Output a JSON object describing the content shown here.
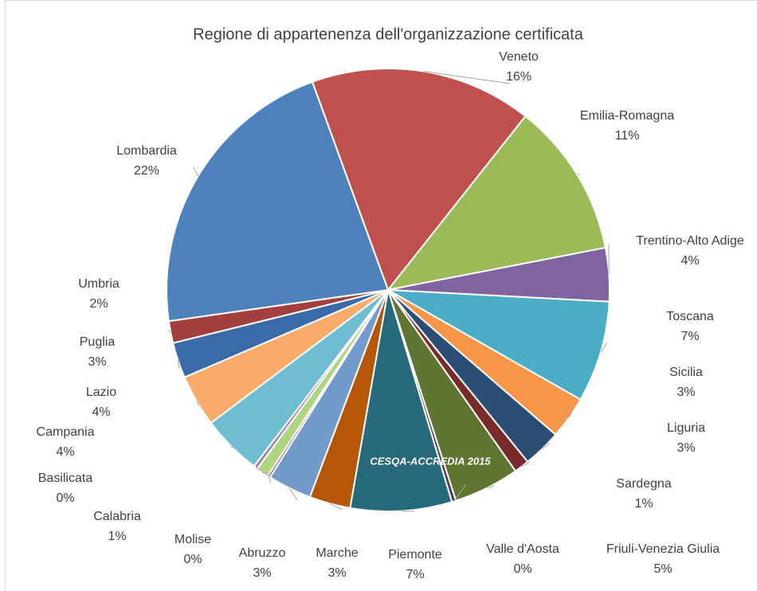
{
  "chart_data": {
    "type": "pie",
    "title": "Regione di appartenenza dell'organizzazione certificata",
    "annotation": "CESQA-ACCREDIA 2015",
    "categories": [
      "Veneto",
      "Emilia-Romagna",
      "Trentino-Alto Adige",
      "Toscana",
      "Sicilia",
      "Liguria",
      "Sardegna",
      "Friuli-Venezia Giulia",
      "Valle d'Aosta",
      "Piemonte",
      "Marche",
      "Abruzzo",
      "Molise",
      "Calabria",
      "Basilicata",
      "Campania",
      "Lazio",
      "Puglia",
      "Umbria",
      "Lombardia"
    ],
    "values": [
      16.2,
      11.3,
      3.9,
      7.4,
      3.1,
      2.8,
      1.1,
      4.8,
      0.3,
      7.4,
      3.0,
      3.2,
      0.2,
      0.9,
      0.3,
      4.4,
      3.8,
      2.6,
      1.6,
      21.7
    ],
    "value_labels": [
      "16%",
      "11%",
      "4%",
      "7%",
      "3%",
      "3%",
      "1%",
      "5%",
      "0%",
      "7%",
      "3%",
      "3%",
      "0%",
      "1%",
      "0%",
      "4%",
      "4%",
      "3%",
      "2%",
      "22%"
    ],
    "colors": [
      "#c0504d",
      "#9bbb59",
      "#8064a2",
      "#4bacc6",
      "#f79646",
      "#2c4d75",
      "#772c2a",
      "#5f7530",
      "#4d3b62",
      "#276a7c",
      "#b65708",
      "#729aca",
      "#8d67b3",
      "#afd580",
      "#9983b5",
      "#6fbdd1",
      "#f9ab6b",
      "#3a6aa7",
      "#a3403d",
      "#4f81bd"
    ]
  }
}
